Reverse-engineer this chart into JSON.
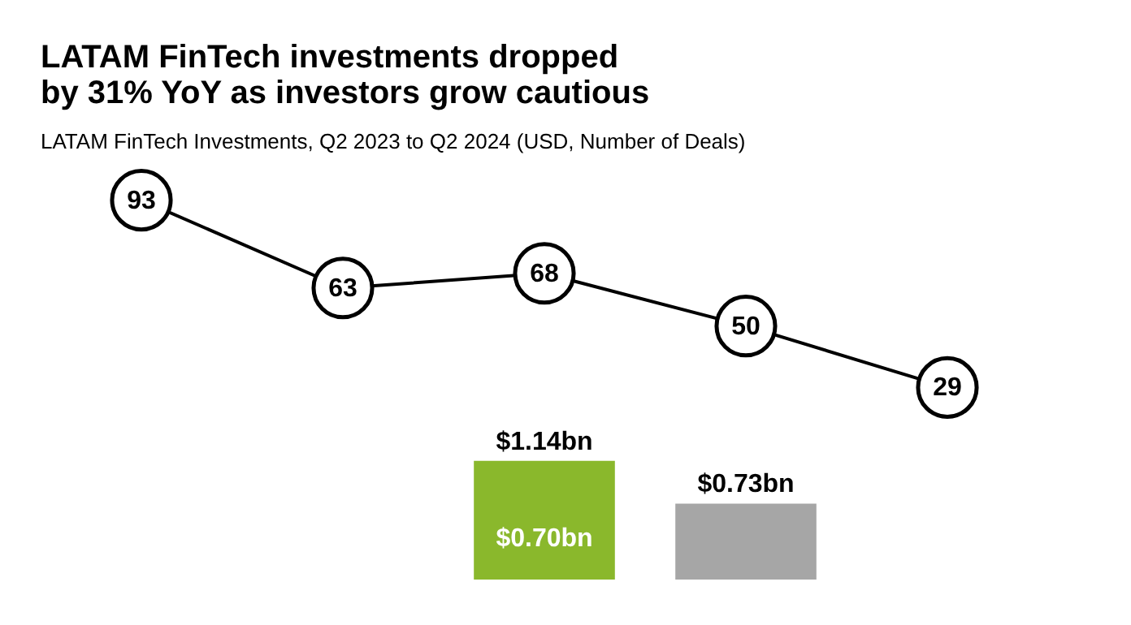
{
  "chart_data": [
    {
      "type": "line",
      "title": [
        "LATAM FinTech investments dropped",
        "by 31% YoY as investors grow cautious"
      ],
      "subtitle": "LATAM FinTech Investments, Q2 2023 to Q2 2024 (USD, Number of Deals)",
      "categories": [
        null,
        null,
        null,
        null,
        null
      ],
      "series": [
        {
          "color": "#000000",
          "values": [
            93,
            63,
            68,
            50,
            29
          ]
        }
      ],
      "marker": "circle",
      "data_labels": true
    },
    {
      "type": "bar",
      "categories": [
        null,
        null,
        null,
        null,
        null
      ],
      "values": [
        null,
        null,
        1.14,
        0.73,
        null
      ],
      "colors": [
        "#8ab82c",
        "#8ab82c",
        "#8ab82c",
        "#a6a6a6",
        "#a6a6a6"
      ],
      "value_labels": [
        null,
        null,
        "$1.14bn",
        "$0.73bn",
        null
      ],
      "annotations": [
        "$0.70bn"
      ]
    }
  ]
}
